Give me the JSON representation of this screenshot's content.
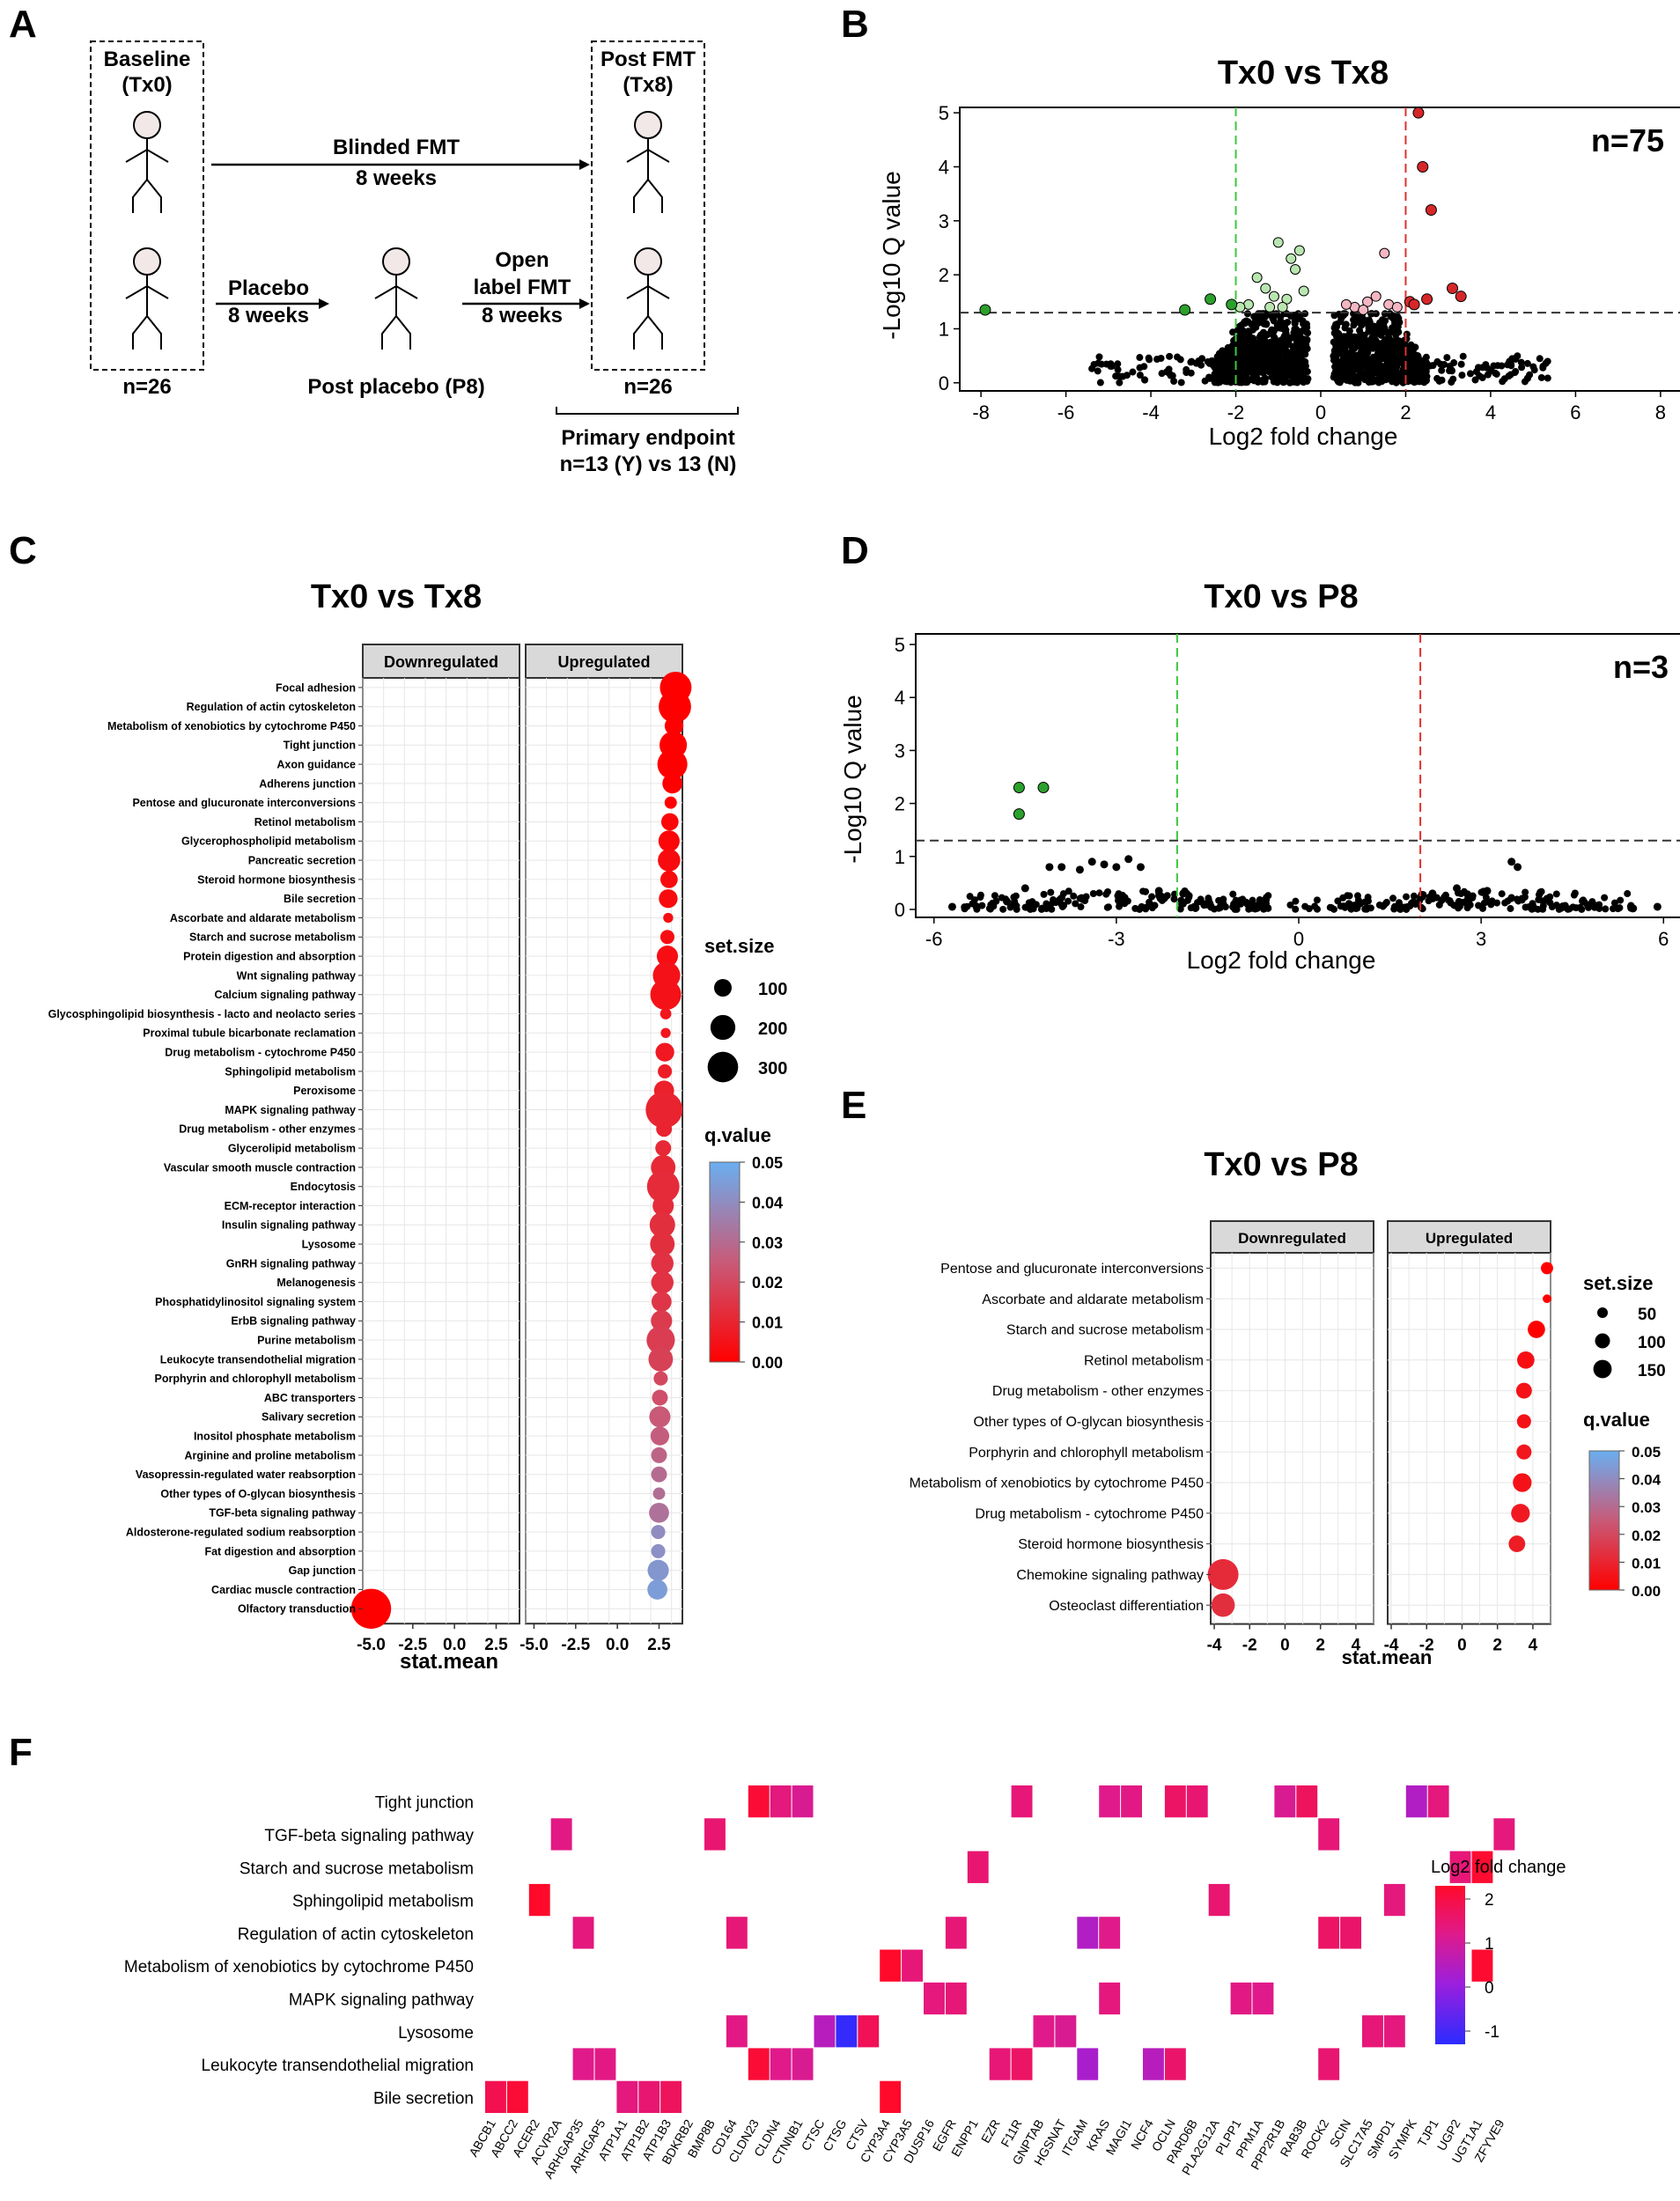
{
  "panel_labels": {
    "a": "A",
    "b": "B",
    "c": "C",
    "d": "D",
    "e": "E",
    "f": "F"
  },
  "panel_a": {
    "baseline_title": "Baseline",
    "baseline_sub": "(Tx0)",
    "post_title": "Post FMT",
    "post_sub": "(Tx8)",
    "blinded_title": "Blinded FMT",
    "blinded_weeks": "8 weeks",
    "placebo_title": "Placebo",
    "placebo_weeks": "8 weeks",
    "open_line1": "Open",
    "open_line2": "label FMT",
    "open_weeks": "8 weeks",
    "n_left": "n=26",
    "n_right": "n=26",
    "post_placebo": "Post placebo (P8)",
    "endpoint_title": "Primary endpoint",
    "endpoint_sub": "n=13 (Y) vs 13 (N)",
    "colors": {
      "head_fill": "#f2e8e8",
      "stroke": "#000000"
    }
  },
  "chart_data": [
    {
      "panel": "B",
      "type": "scatter",
      "title": "Tx0 vs Tx8",
      "xlabel": "Log2 fold change",
      "ylabel": "-Log10 Q value",
      "xlim": [
        -8.5,
        8.5
      ],
      "ylim": [
        -0.15,
        5.1
      ],
      "xticks": [
        -8,
        -6,
        -4,
        -2,
        0,
        2,
        4,
        6,
        8
      ],
      "yticks": [
        0,
        1,
        2,
        3,
        4,
        5
      ],
      "annotation": "n=75",
      "threshold_q": 1.3,
      "fold_thresholds": [
        -2,
        2
      ],
      "significant_up": [
        [
          2.3,
          5.0
        ],
        [
          2.4,
          4.0
        ],
        [
          2.6,
          3.2
        ],
        [
          3.1,
          1.75
        ],
        [
          3.3,
          1.6
        ],
        [
          2.5,
          1.55
        ],
        [
          2.1,
          1.5
        ],
        [
          2.2,
          1.45
        ]
      ],
      "significant_down": [
        [
          -7.9,
          1.35
        ],
        [
          -3.2,
          1.35
        ],
        [
          -2.6,
          1.55
        ],
        [
          -2.1,
          1.45
        ]
      ],
      "trend_up": [
        [
          0.8,
          1.4
        ],
        [
          1.1,
          1.5
        ],
        [
          1.3,
          1.6
        ],
        [
          1.6,
          1.45
        ],
        [
          1.5,
          2.4
        ],
        [
          1.8,
          1.4
        ],
        [
          1.0,
          1.35
        ],
        [
          0.6,
          1.45
        ]
      ],
      "trend_down": [
        [
          -1.0,
          2.6
        ],
        [
          -0.7,
          2.3
        ],
        [
          -0.5,
          2.45
        ],
        [
          -0.6,
          2.1
        ],
        [
          -1.3,
          1.75
        ],
        [
          -1.5,
          1.95
        ],
        [
          -1.1,
          1.6
        ],
        [
          -0.8,
          1.55
        ],
        [
          -1.7,
          1.45
        ],
        [
          -0.4,
          1.7
        ],
        [
          -1.9,
          1.4
        ],
        [
          -0.9,
          1.4
        ],
        [
          -1.2,
          1.4
        ]
      ],
      "colors": {
        "up": "#d62728",
        "down": "#2ca02c",
        "trend_up": "#f4b6c2",
        "trend_down": "#b9e6b0",
        "ns": "#000000",
        "thr_up": "#e0312f",
        "thr_down": "#3cc83c"
      }
    },
    {
      "panel": "D",
      "type": "scatter",
      "title": "Tx0 vs P8",
      "xlabel": "Log2 fold change",
      "ylabel": "-Log10 Q value",
      "xlim": [
        -6.3,
        6.3
      ],
      "ylim": [
        -0.15,
        5.2
      ],
      "xticks": [
        -6,
        -3,
        0,
        3,
        6
      ],
      "yticks": [
        0,
        1,
        2,
        3,
        4,
        5
      ],
      "annotation": "n=3",
      "threshold_q": 1.3,
      "fold_thresholds": [
        -2,
        2
      ],
      "significant_down": [
        [
          -4.6,
          2.3
        ],
        [
          -4.2,
          2.3
        ],
        [
          -4.6,
          1.8
        ]
      ],
      "sparse_points": [
        [
          -4.1,
          0.8
        ],
        [
          -3.9,
          0.8
        ],
        [
          -3.6,
          0.75
        ],
        [
          -3.4,
          0.9
        ],
        [
          -3.2,
          0.85
        ],
        [
          -3.0,
          0.8
        ],
        [
          -2.8,
          0.95
        ],
        [
          -2.6,
          0.8
        ],
        [
          3.5,
          0.9
        ],
        [
          3.6,
          0.8
        ],
        [
          -4.5,
          0.4
        ],
        [
          -4.8,
          0.15
        ],
        [
          -5.7,
          0.05
        ],
        [
          5.9,
          0.05
        ],
        [
          5.5,
          0.02
        ],
        [
          -2.3,
          0.35
        ],
        [
          -1.9,
          0.3
        ],
        [
          2.2,
          0.3
        ],
        [
          2.6,
          0.4
        ],
        [
          3.1,
          0.35
        ]
      ],
      "colors": {
        "down": "#2ca02c",
        "ns": "#000000",
        "thr_up": "#e0312f",
        "thr_down": "#3cc83c"
      }
    },
    {
      "panel": "C",
      "type": "dot",
      "title": "Tx0 vs Tx8",
      "facets": [
        "Downregulated",
        "Upregulated"
      ],
      "xlabel": "stat.mean",
      "xticks": [
        -5.0,
        -2.5,
        0.0,
        2.5
      ],
      "xlim": [
        -5.5,
        3.9
      ],
      "size_legend_title": "set.size",
      "size_legend": [
        100,
        200,
        300
      ],
      "color_legend_title": "q.value",
      "color_legend": [
        0.05,
        0.04,
        0.03,
        0.02,
        0.01,
        0.0
      ],
      "pathways": [
        "Focal adhesion",
        "Regulation of actin cytoskeleton",
        "Metabolism of xenobiotics by cytochrome P450",
        "Tight junction",
        "Axon guidance",
        "Adherens junction",
        "Pentose and glucuronate interconversions",
        "Retinol metabolism",
        "Glycerophospholipid metabolism",
        "Pancreatic secretion",
        "Steroid hormone biosynthesis",
        "Bile secretion",
        "Ascorbate and aldarate metabolism",
        "Starch and sucrose metabolism",
        "Protein digestion and absorption",
        "Wnt signaling pathway",
        "Calcium signaling pathway",
        "Glycosphingolipid biosynthesis - lacto and neolacto series",
        "Proximal tubule bicarbonate reclamation",
        "Drug metabolism - cytochrome P450",
        "Sphingolipid metabolism",
        "Peroxisome",
        "MAPK signaling pathway",
        "Drug metabolism - other enzymes",
        "Glycerolipid metabolism",
        "Vascular smooth muscle contraction",
        "Endocytosis",
        "ECM-receptor interaction",
        "Insulin signaling pathway",
        "Lysosome",
        "GnRH signaling pathway",
        "Melanogenesis",
        "Phosphatidylinositol signaling system",
        "ErbB signaling pathway",
        "Purine metabolism",
        "Leukocyte transendothelial migration",
        "Porphyrin and chlorophyll metabolism",
        "ABC transporters",
        "Salivary secretion",
        "Inositol phosphate metabolism",
        "Arginine and proline metabolism",
        "Vasopressin-regulated water reabsorption",
        "Other types of O-glycan biosynthesis",
        "TGF-beta signaling pathway",
        "Aldosterone-regulated sodium reabsorption",
        "Fat digestion and absorption",
        "Gap junction",
        "Cardiac muscle contraction",
        "Olfactory transduction"
      ],
      "stat_mean": [
        3.5,
        3.45,
        3.4,
        3.35,
        3.3,
        3.3,
        3.2,
        3.15,
        3.1,
        3.1,
        3.1,
        3.05,
        3.05,
        3.0,
        3.0,
        2.95,
        2.9,
        2.9,
        2.9,
        2.85,
        2.85,
        2.8,
        2.8,
        2.8,
        2.75,
        2.75,
        2.75,
        2.75,
        2.7,
        2.7,
        2.7,
        2.7,
        2.65,
        2.65,
        2.6,
        2.6,
        2.6,
        2.55,
        2.55,
        2.55,
        2.5,
        2.5,
        2.5,
        2.5,
        2.45,
        2.45,
        2.45,
        2.4,
        -5.0
      ],
      "set_size": [
        200,
        210,
        70,
        150,
        180,
        80,
        30,
        60,
        90,
        100,
        60,
        70,
        20,
        40,
        90,
        150,
        190,
        25,
        20,
        70,
        40,
        80,
        270,
        50,
        50,
        120,
        210,
        90,
        130,
        120,
        100,
        100,
        80,
        90,
        160,
        120,
        40,
        50,
        90,
        70,
        50,
        50,
        30,
        80,
        40,
        40,
        90,
        80,
        320
      ],
      "q_value": [
        0.0,
        0.0,
        0.0,
        0.0,
        0.0,
        0.0,
        0.0,
        0.002,
        0.002,
        0.003,
        0.003,
        0.003,
        0.004,
        0.004,
        0.004,
        0.005,
        0.005,
        0.006,
        0.006,
        0.007,
        0.008,
        0.009,
        0.01,
        0.01,
        0.011,
        0.011,
        0.012,
        0.012,
        0.013,
        0.013,
        0.014,
        0.014,
        0.015,
        0.016,
        0.017,
        0.018,
        0.02,
        0.022,
        0.025,
        0.026,
        0.028,
        0.03,
        0.031,
        0.032,
        0.04,
        0.041,
        0.043,
        0.045,
        0.0
      ]
    },
    {
      "panel": "E",
      "type": "dot",
      "title": "Tx0 vs P8",
      "facets": [
        "Downregulated",
        "Upregulated"
      ],
      "xlabel": "stat.mean",
      "xticks": [
        -4,
        -2,
        0,
        2,
        4
      ],
      "xlim": [
        -4.2,
        5.0
      ],
      "size_legend_title": "set.size",
      "size_legend": [
        50,
        100,
        150
      ],
      "color_legend_title": "q.value",
      "color_legend": [
        0.05,
        0.04,
        0.03,
        0.02,
        0.01,
        0.0
      ],
      "pathways": [
        "Pentose and glucuronate interconversions",
        "Ascorbate and aldarate metabolism",
        "Starch and sucrose metabolism",
        "Retinol metabolism",
        "Drug metabolism - other enzymes",
        "Other types of O-glycan biosynthesis",
        "Porphyrin and chlorophyll metabolism",
        "Metabolism of xenobiotics by cytochrome P450",
        "Drug metabolism - cytochrome P450",
        "Steroid hormone biosynthesis",
        "Chemokine signaling pathway",
        "Osteoclast differentiation"
      ],
      "stat_mean": [
        4.8,
        4.8,
        4.2,
        3.6,
        3.5,
        3.5,
        3.5,
        3.4,
        3.3,
        3.1,
        -3.5,
        -3.5
      ],
      "set_size": [
        30,
        15,
        60,
        60,
        50,
        40,
        45,
        70,
        70,
        55,
        190,
        110
      ],
      "q_value": [
        0.0,
        0.0,
        0.0,
        0.004,
        0.005,
        0.005,
        0.006,
        0.005,
        0.007,
        0.008,
        0.012,
        0.013
      ]
    },
    {
      "panel": "F",
      "type": "heatmap",
      "legend_title": "Log2 fold change",
      "legend_ticks": [
        2,
        1,
        0,
        -1
      ],
      "rows": [
        "Tight junction",
        "TGF-beta signaling pathway",
        "Starch and sucrose metabolism",
        "Sphingolipid metabolism",
        "Regulation of actin cytoskeleton",
        "Metabolism of xenobiotics by cytochrome P450",
        "MAPK signaling pathway",
        "Lysosome",
        "Leukocyte transendothelial migration",
        "Bile secretion"
      ],
      "columns": [
        "ABCB1",
        "ABCC2",
        "ACER2",
        "ACVR2A",
        "ARHGAP35",
        "ARHGAP5",
        "ATP1A1",
        "ATP1B2",
        "ATP1B3",
        "BDKRB2",
        "BMP8B",
        "CD164",
        "CLDN23",
        "CLDN4",
        "CTNNB1",
        "CTSC",
        "CTSG",
        "CTSV",
        "CYP3A4",
        "CYP3A5",
        "DUSP16",
        "EGFR",
        "ENPP1",
        "EZR",
        "F11R",
        "GNPTAB",
        "HGSNAT",
        "ITGAM",
        "KRAS",
        "MAGI1",
        "NCF4",
        "OCLN",
        "PARD6B",
        "PLA2G12A",
        "PLPP1",
        "PPM1A",
        "PPP2R1B",
        "RAB3B",
        "ROCK2",
        "SCIN",
        "SLC17A5",
        "SMPD1",
        "SYMPK",
        "TJP1",
        "UGP2",
        "UGT1A1",
        "ZFYVE9"
      ],
      "cells": [
        [
          0,
          12,
          2.3
        ],
        [
          0,
          13,
          1.2
        ],
        [
          0,
          14,
          0.9
        ],
        [
          0,
          24,
          1.3
        ],
        [
          0,
          28,
          1.0
        ],
        [
          0,
          29,
          1.1
        ],
        [
          0,
          31,
          1.6
        ],
        [
          0,
          32,
          1.4
        ],
        [
          0,
          36,
          0.9
        ],
        [
          0,
          37,
          1.7
        ],
        [
          0,
          42,
          0.3
        ],
        [
          0,
          43,
          1.2
        ],
        [
          1,
          3,
          1.1
        ],
        [
          1,
          10,
          1.4
        ],
        [
          1,
          38,
          1.3
        ],
        [
          1,
          46,
          1.2
        ],
        [
          2,
          22,
          1.4
        ],
        [
          2,
          44,
          1.3
        ],
        [
          2,
          45,
          2.4
        ],
        [
          3,
          2,
          2.5
        ],
        [
          3,
          33,
          1.4
        ],
        [
          3,
          41,
          1.2
        ],
        [
          4,
          4,
          1.2
        ],
        [
          4,
          11,
          1.3
        ],
        [
          4,
          21,
          1.3
        ],
        [
          4,
          27,
          0.3
        ],
        [
          4,
          28,
          1.0
        ],
        [
          4,
          38,
          1.6
        ],
        [
          4,
          39,
          1.5
        ],
        [
          5,
          18,
          2.6
        ],
        [
          5,
          19,
          1.3
        ],
        [
          5,
          45,
          2.4
        ],
        [
          6,
          20,
          1.2
        ],
        [
          6,
          21,
          1.3
        ],
        [
          6,
          28,
          1.2
        ],
        [
          6,
          34,
          1.1
        ],
        [
          6,
          35,
          1.0
        ],
        [
          7,
          11,
          1.1
        ],
        [
          7,
          15,
          0.4
        ],
        [
          7,
          16,
          -1.2
        ],
        [
          7,
          17,
          1.8
        ],
        [
          7,
          25,
          1.0
        ],
        [
          7,
          26,
          0.9
        ],
        [
          7,
          40,
          1.3
        ],
        [
          7,
          41,
          1.2
        ],
        [
          8,
          4,
          1.0
        ],
        [
          8,
          5,
          1.1
        ],
        [
          8,
          12,
          2.3
        ],
        [
          8,
          13,
          1.0
        ],
        [
          8,
          14,
          0.9
        ],
        [
          8,
          23,
          1.3
        ],
        [
          8,
          24,
          1.6
        ],
        [
          8,
          27,
          0.2
        ],
        [
          8,
          30,
          0.4
        ],
        [
          8,
          31,
          1.5
        ],
        [
          8,
          38,
          1.4
        ],
        [
          9,
          0,
          1.9
        ],
        [
          9,
          1,
          2.3
        ],
        [
          9,
          6,
          1.2
        ],
        [
          9,
          7,
          1.4
        ],
        [
          9,
          8,
          1.7
        ],
        [
          9,
          18,
          2.6
        ]
      ]
    }
  ]
}
